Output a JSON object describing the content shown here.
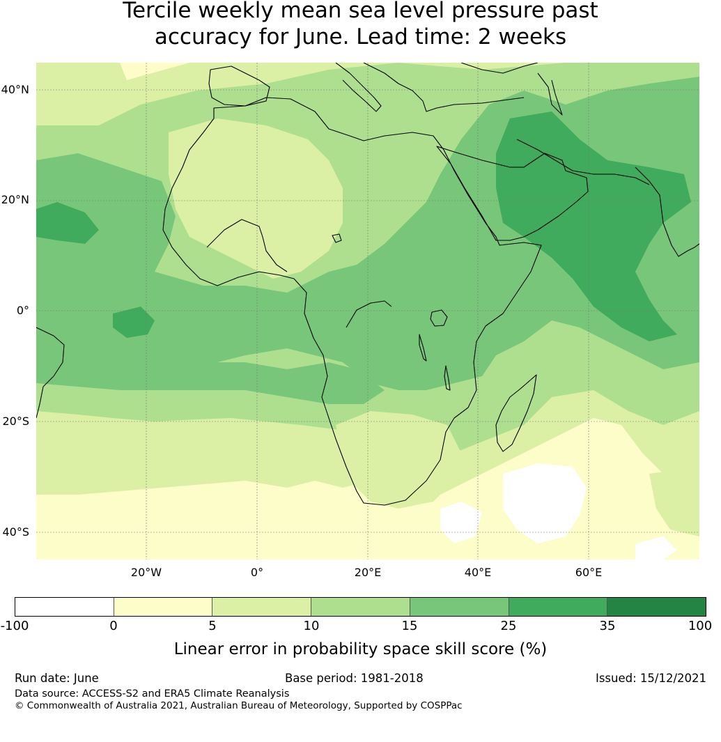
{
  "title_line1": "Tercile weekly mean sea level pressure past",
  "title_line2": "accuracy for June. Lead time: 2 weeks",
  "latitude_labels": [
    "40°N",
    "20°N",
    "0°",
    "20°S",
    "40°S"
  ],
  "longitude_labels": [
    "20°W",
    "0°",
    "20°E",
    "40°E",
    "60°E"
  ],
  "colorbar": {
    "ticks": [
      "-100",
      "0",
      "5",
      "10",
      "15",
      "25",
      "35",
      "100"
    ],
    "colors": [
      "#ffffff",
      "#fdfdc9",
      "#dbf0a4",
      "#addf8e",
      "#78c679",
      "#40ab5d",
      "#238443"
    ],
    "label": "Linear error in probability space skill score (%)"
  },
  "footer": {
    "run_date": "Run date: June",
    "base_period": "Base period: 1981-2018",
    "issued": "Issued: 15/12/2021",
    "data_source": "Data source: ACCESS-S2 and ERA5 Climate Reanalysis",
    "copyright": "© Commonwealth of Australia 2021, Australian Bureau of Meteorology, Supported by COSPPac"
  }
}
